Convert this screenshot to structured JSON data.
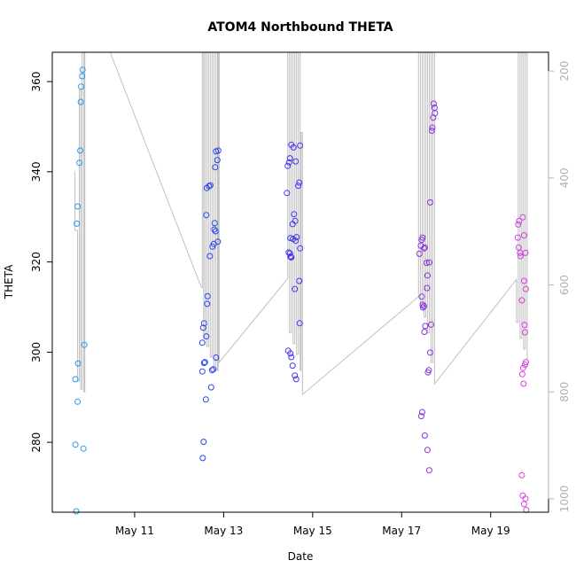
{
  "chart_data": {
    "type": "scatter",
    "title": "ATOM4 Northbound THETA",
    "xlabel": "Date",
    "ylabel": "THETA",
    "x_tick_labels": [
      "May 11",
      "May 13",
      "May 15",
      "May 17",
      "May 19"
    ],
    "x_tick_values": [
      11,
      13,
      15,
      17,
      19
    ],
    "xlim": [
      9.15,
      20.3
    ],
    "y_ticks": [
      280,
      300,
      320,
      340,
      360
    ],
    "ylim": [
      264.5,
      366.5
    ],
    "y2_ticks": [
      200,
      400,
      600,
      800,
      1000
    ],
    "y2lim": [
      1025,
      165
    ],
    "grid": false,
    "colors": {
      "g1": "#1e9bef",
      "g2": "#2b44ee",
      "g3": "#4536ef",
      "g4": "#8a30e0",
      "g5": "#d53fdc",
      "pressure_line": "#c0c0c0",
      "right_axis": "#b0b0b0"
    },
    "series": [
      {
        "color_key": "g1",
        "points": [
          [
            9.67,
            279.5
          ],
          [
            9.69,
            264.7
          ],
          [
            9.67,
            294
          ],
          [
            9.7,
            328.5
          ],
          [
            9.72,
            332.3
          ],
          [
            9.73,
            297.5
          ],
          [
            9.72,
            289
          ],
          [
            9.76,
            342
          ],
          [
            9.78,
            344.7
          ],
          [
            9.79,
            355.5
          ],
          [
            9.8,
            358.9
          ],
          [
            9.82,
            361.2
          ],
          [
            9.83,
            362.6
          ],
          [
            9.85,
            278.6
          ],
          [
            9.87,
            301.6
          ]
        ]
      },
      {
        "color_key": "g2",
        "points": [
          [
            12.53,
            276.5
          ],
          [
            12.55,
            280.1
          ],
          [
            12.52,
            295.7
          ],
          [
            12.52,
            302.1
          ],
          [
            12.54,
            305.4
          ],
          [
            12.56,
            306.4
          ],
          [
            12.56,
            297.6
          ],
          [
            12.6,
            289.5
          ],
          [
            12.58,
            297.8
          ],
          [
            12.61,
            303.5
          ],
          [
            12.63,
            310.7
          ],
          [
            12.64,
            312.4
          ],
          [
            12.61,
            330.4
          ],
          [
            12.62,
            336.4
          ],
          [
            12.67,
            336.8
          ],
          [
            12.7,
            337
          ],
          [
            12.69,
            321.3
          ],
          [
            12.72,
            292.2
          ],
          [
            12.74,
            296
          ],
          [
            12.77,
            296.2
          ],
          [
            12.75,
            323.4
          ],
          [
            12.78,
            324
          ],
          [
            12.79,
            327.2
          ],
          [
            12.8,
            328.6
          ],
          [
            12.82,
            326.8
          ],
          [
            12.81,
            341
          ],
          [
            12.83,
            344.5
          ],
          [
            12.86,
            342.6
          ],
          [
            12.88,
            344.7
          ],
          [
            12.87,
            324.5
          ],
          [
            12.83,
            298.8
          ]
        ]
      },
      {
        "color_key": "g3",
        "points": [
          [
            14.42,
            335.3
          ],
          [
            14.44,
            341.3
          ],
          [
            14.47,
            342.1
          ],
          [
            14.49,
            343
          ],
          [
            14.52,
            346
          ],
          [
            14.57,
            345.4
          ],
          [
            14.62,
            342.3
          ],
          [
            14.46,
            322.1
          ],
          [
            14.49,
            321.9
          ],
          [
            14.5,
            321.2
          ],
          [
            14.52,
            321
          ],
          [
            14.5,
            325.3
          ],
          [
            14.55,
            328.4
          ],
          [
            14.58,
            330.6
          ],
          [
            14.61,
            329.1
          ],
          [
            14.56,
            325.1
          ],
          [
            14.62,
            324.7
          ],
          [
            14.64,
            325.5
          ],
          [
            14.68,
            336.9
          ],
          [
            14.7,
            337.6
          ],
          [
            14.72,
            345.8
          ],
          [
            14.72,
            323
          ],
          [
            14.7,
            315.8
          ],
          [
            14.6,
            314
          ],
          [
            14.45,
            300.3
          ],
          [
            14.5,
            299.7
          ],
          [
            14.52,
            298.9
          ],
          [
            14.55,
            297
          ],
          [
            14.6,
            294.8
          ],
          [
            14.63,
            294
          ],
          [
            14.71,
            306.4
          ],
          [
            14.51,
            321.2
          ]
        ]
      },
      {
        "color_key": "g4",
        "points": [
          [
            17.4,
            321.8
          ],
          [
            17.43,
            323.6
          ],
          [
            17.45,
            324.9
          ],
          [
            17.47,
            325.4
          ],
          [
            17.5,
            323
          ],
          [
            17.52,
            323.2
          ],
          [
            17.56,
            319.8
          ],
          [
            17.58,
            317
          ],
          [
            17.62,
            319.9
          ],
          [
            17.64,
            333.2
          ],
          [
            17.68,
            349.1
          ],
          [
            17.69,
            349.8
          ],
          [
            17.71,
            352
          ],
          [
            17.72,
            355.1
          ],
          [
            17.74,
            354.2
          ],
          [
            17.75,
            353
          ],
          [
            17.45,
            312.3
          ],
          [
            17.47,
            310.5
          ],
          [
            17.48,
            309.9
          ],
          [
            17.5,
            310.2
          ],
          [
            17.53,
            305.8
          ],
          [
            17.51,
            304.5
          ],
          [
            17.57,
            314.2
          ],
          [
            17.59,
            295.5
          ],
          [
            17.61,
            296
          ],
          [
            17.64,
            299.9
          ],
          [
            17.66,
            306.1
          ],
          [
            17.44,
            285.8
          ],
          [
            17.46,
            286.7
          ],
          [
            17.52,
            281.5
          ],
          [
            17.58,
            278.3
          ],
          [
            17.62,
            273.8
          ]
        ]
      },
      {
        "color_key": "g5",
        "points": [
          [
            19.62,
            328.3
          ],
          [
            19.64,
            329.1
          ],
          [
            19.61,
            325.4
          ],
          [
            19.63,
            323.2
          ],
          [
            19.66,
            322
          ],
          [
            19.67,
            321.3
          ],
          [
            19.72,
            329.9
          ],
          [
            19.75,
            325.9
          ],
          [
            19.78,
            322
          ],
          [
            19.79,
            314
          ],
          [
            19.75,
            315.8
          ],
          [
            19.7,
            311.5
          ],
          [
            19.76,
            306
          ],
          [
            19.77,
            304.4
          ],
          [
            19.73,
            296.5
          ],
          [
            19.77,
            297.2
          ],
          [
            19.79,
            297.8
          ],
          [
            19.71,
            295.1
          ],
          [
            19.74,
            293
          ],
          [
            19.7,
            272.7
          ],
          [
            19.72,
            268.2
          ],
          [
            19.78,
            267.5
          ],
          [
            19.75,
            266.3
          ],
          [
            19.8,
            265
          ]
        ]
      }
    ],
    "pressure_trace": [
      [
        9.66,
        388
      ],
      [
        9.66,
        498
      ],
      [
        9.72,
        498
      ],
      [
        9.72,
        780
      ],
      [
        9.76,
        780
      ],
      [
        9.76,
        235
      ],
      [
        9.79,
        235
      ],
      [
        9.79,
        795
      ],
      [
        9.82,
        795
      ],
      [
        9.82,
        165
      ],
      [
        9.86,
        165
      ],
      [
        9.86,
        800
      ],
      [
        9.88,
        800
      ],
      [
        9.88,
        165
      ],
      [
        10.45,
        165
      ],
      [
        12.5,
        605
      ],
      [
        12.52,
        605
      ],
      [
        12.52,
        165
      ],
      [
        12.55,
        165
      ],
      [
        12.55,
        700
      ],
      [
        12.58,
        700
      ],
      [
        12.58,
        165
      ],
      [
        12.62,
        165
      ],
      [
        12.62,
        715
      ],
      [
        12.66,
        715
      ],
      [
        12.66,
        165
      ],
      [
        12.7,
        165
      ],
      [
        12.7,
        735
      ],
      [
        12.74,
        735
      ],
      [
        12.74,
        165
      ],
      [
        12.78,
        165
      ],
      [
        12.78,
        760
      ],
      [
        12.82,
        760
      ],
      [
        12.82,
        165
      ],
      [
        12.86,
        165
      ],
      [
        12.86,
        760
      ],
      [
        12.88,
        760
      ],
      [
        12.88,
        165
      ],
      [
        12.9,
        165
      ],
      [
        12.9,
        745
      ],
      [
        14.44,
        588
      ],
      [
        14.44,
        165
      ],
      [
        14.48,
        165
      ],
      [
        14.48,
        690
      ],
      [
        14.52,
        690
      ],
      [
        14.52,
        165
      ],
      [
        14.56,
        165
      ],
      [
        14.56,
        710
      ],
      [
        14.6,
        710
      ],
      [
        14.6,
        165
      ],
      [
        14.64,
        165
      ],
      [
        14.64,
        730
      ],
      [
        14.68,
        730
      ],
      [
        14.68,
        165
      ],
      [
        14.72,
        165
      ],
      [
        14.72,
        760
      ],
      [
        14.74,
        760
      ],
      [
        14.74,
        315
      ],
      [
        14.77,
        315
      ],
      [
        14.77,
        805
      ],
      [
        17.38,
        622
      ],
      [
        17.38,
        165
      ],
      [
        17.42,
        165
      ],
      [
        17.42,
        640
      ],
      [
        17.46,
        640
      ],
      [
        17.46,
        165
      ],
      [
        17.5,
        165
      ],
      [
        17.5,
        660
      ],
      [
        17.54,
        660
      ],
      [
        17.54,
        165
      ],
      [
        17.58,
        165
      ],
      [
        17.58,
        690
      ],
      [
        17.62,
        690
      ],
      [
        17.62,
        165
      ],
      [
        17.66,
        165
      ],
      [
        17.66,
        745
      ],
      [
        17.7,
        745
      ],
      [
        17.7,
        165
      ],
      [
        17.74,
        165
      ],
      [
        17.74,
        785
      ],
      [
        19.58,
        590
      ],
      [
        19.58,
        670
      ],
      [
        19.62,
        670
      ],
      [
        19.62,
        165
      ],
      [
        19.66,
        165
      ],
      [
        19.66,
        700
      ],
      [
        19.7,
        700
      ],
      [
        19.7,
        165
      ],
      [
        19.74,
        165
      ],
      [
        19.74,
        720
      ],
      [
        19.78,
        720
      ],
      [
        19.78,
        165
      ],
      [
        19.82,
        165
      ],
      [
        19.82,
        740
      ]
    ]
  }
}
